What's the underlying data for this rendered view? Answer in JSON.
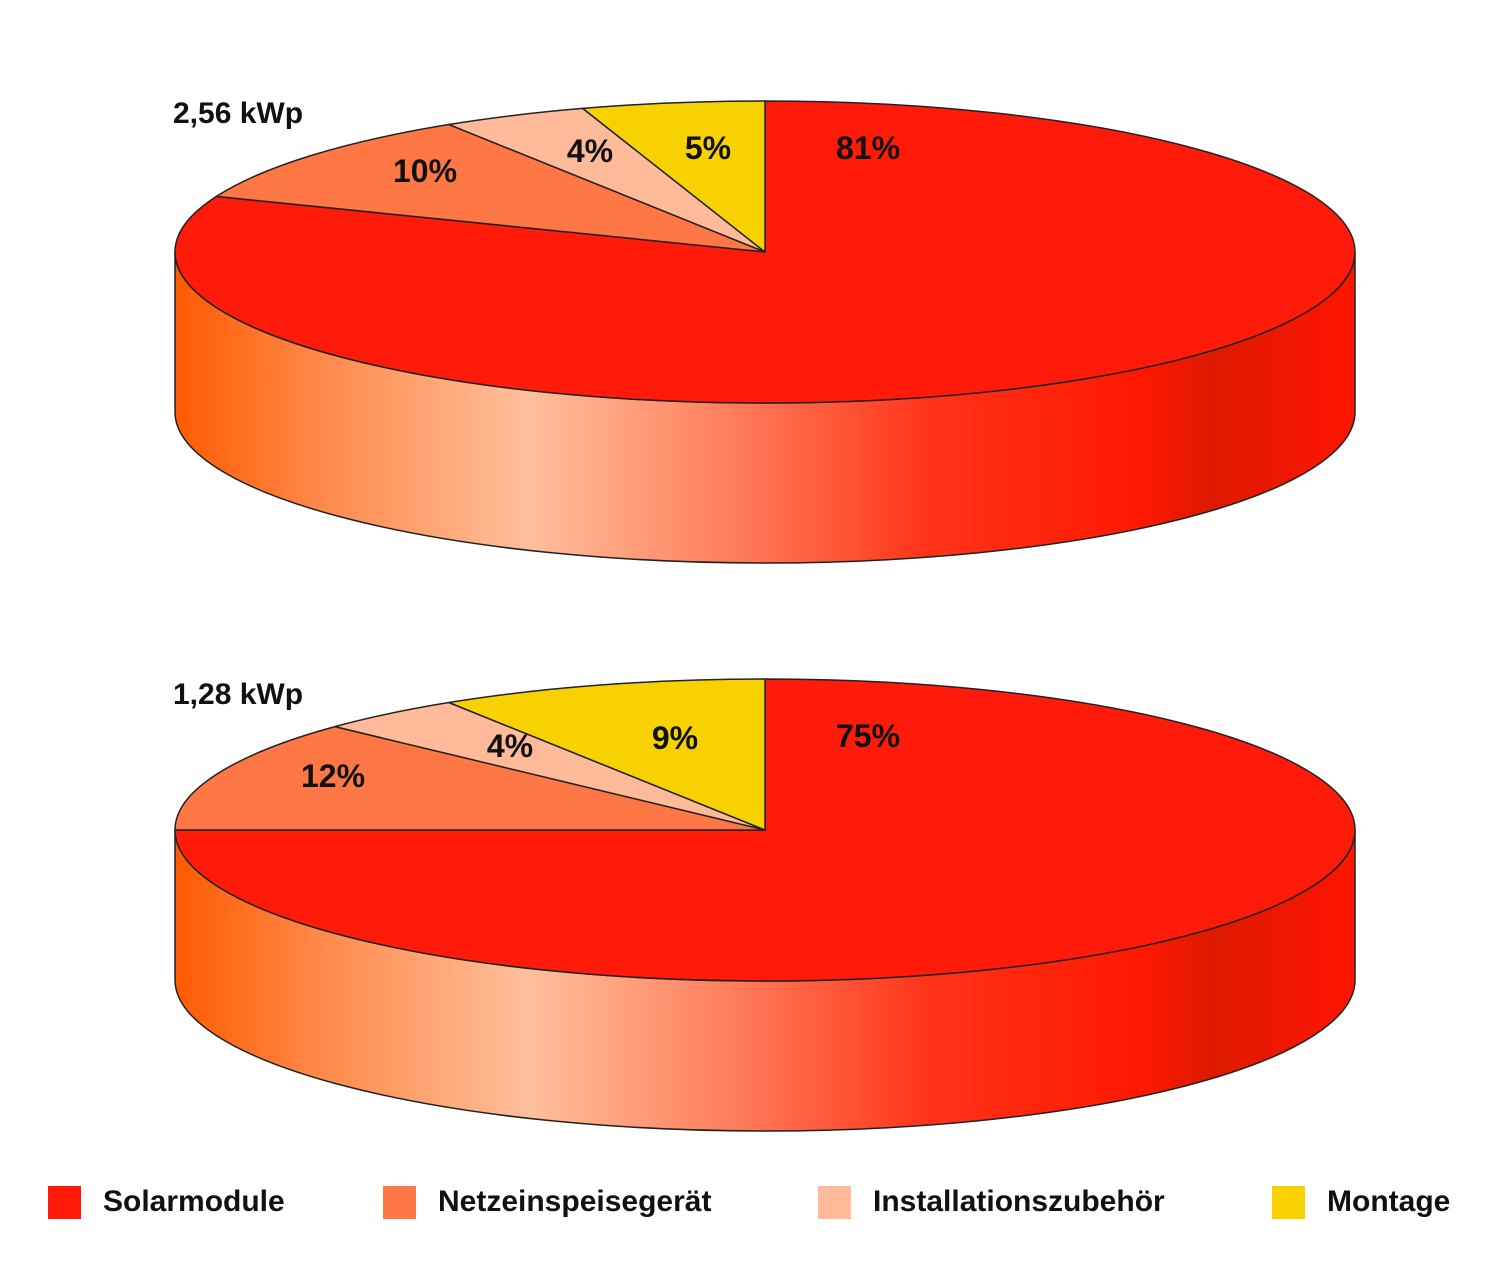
{
  "colors": {
    "Solarmodule": "#ff1a0a",
    "Netzeinspeisegerät": "#ff7744",
    "Installationszubehör": "#ffbb99",
    "Montage": "#f8d200"
  },
  "legend": [
    {
      "label": "Solarmodule",
      "color_key": "Solarmodule"
    },
    {
      "label": "Netzeinspeisegerät",
      "color_key": "Netzeinspeisegerät"
    },
    {
      "label": "Installationszubehör",
      "color_key": "Installationszubehör"
    },
    {
      "label": "Montage",
      "color_key": "Montage"
    }
  ],
  "chart_data": [
    {
      "type": "pie",
      "title": "2,56 kWp",
      "categories": [
        "Solarmodule",
        "Netzeinspeisegerät",
        "Installationszubehör",
        "Montage"
      ],
      "values": [
        81,
        10,
        4,
        5
      ],
      "labels": [
        "81%",
        "10%",
        "4%",
        "5%"
      ]
    },
    {
      "type": "pie",
      "title": "1,28 kWp",
      "categories": [
        "Solarmodule",
        "Netzeinspeisegerät",
        "Installationszubehör",
        "Montage"
      ],
      "values": [
        75,
        12,
        4,
        9
      ],
      "labels": [
        "75%",
        "12%",
        "4%",
        "9%"
      ]
    }
  ]
}
